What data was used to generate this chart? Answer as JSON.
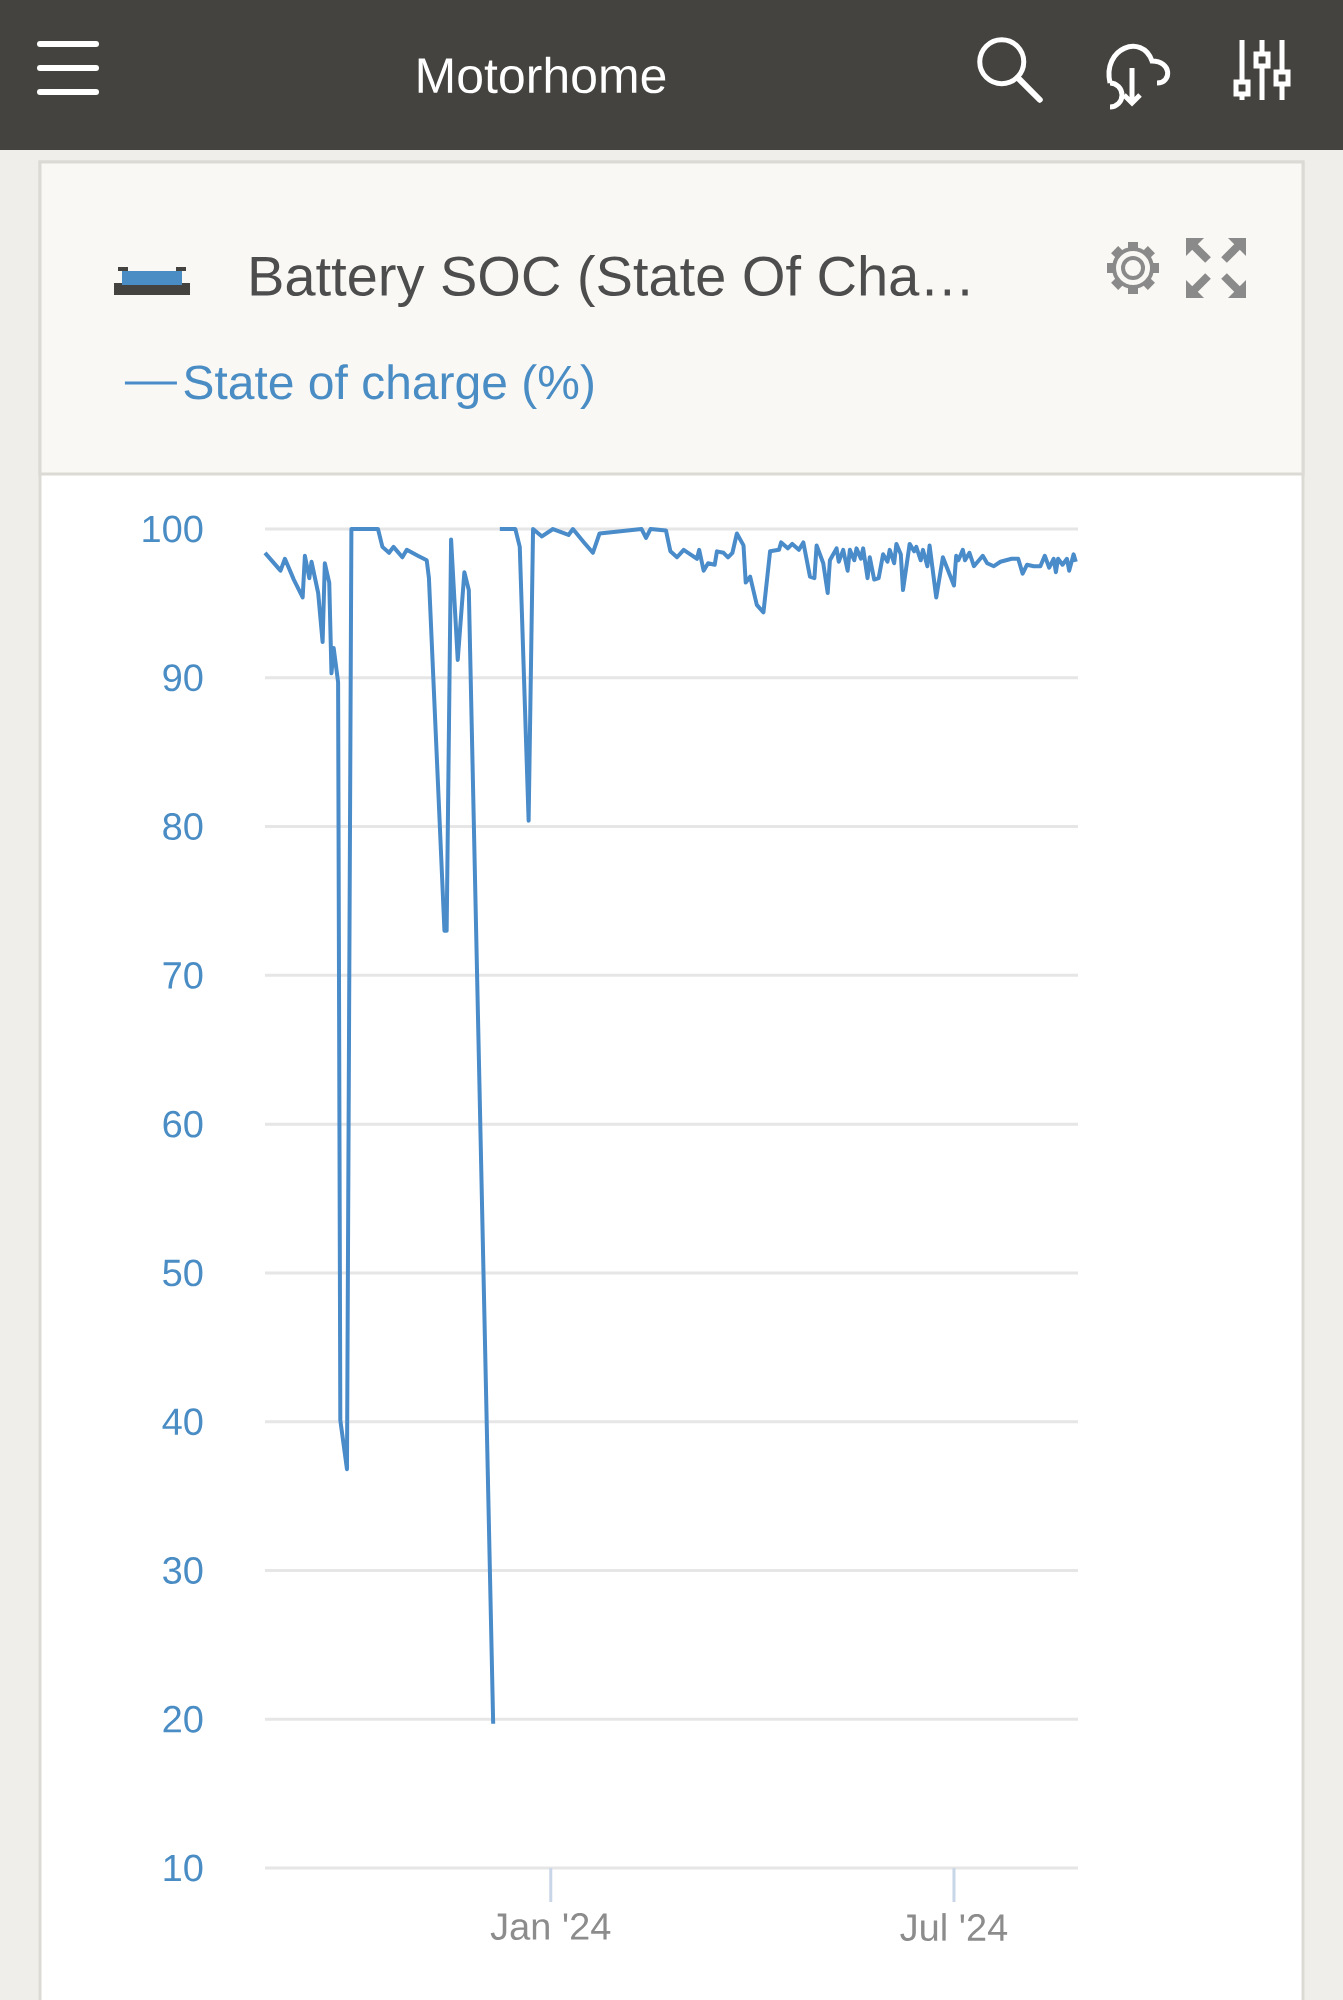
{
  "chart_data": {
    "type": "line",
    "title": "Battery SOC (State Of Cha…",
    "annotations": [
      "Motorhome"
    ],
    "x": [
      "2023-08-25",
      "2023-09-01",
      "2023-09-03",
      "2023-09-07",
      "2023-09-11",
      "2023-09-12",
      "2023-09-14",
      "2023-09-15",
      "2023-09-18",
      "2023-09-20",
      "2023-09-21",
      "2023-09-23",
      "2023-09-24",
      "2023-09-25",
      "2023-09-27",
      "2023-09-28",
      "2023-10-01",
      "2023-10-03",
      "2023-10-15",
      "2023-10-17",
      "2023-10-20",
      "2023-10-22",
      "2023-10-26",
      "2023-10-28",
      "2023-11-02",
      "2023-11-06",
      "2023-11-07",
      "2023-11-14",
      "2023-11-15",
      "2023-11-17",
      "2023-11-20",
      "2023-11-23",
      "2023-11-25",
      "2023-12-06",
      "2023-12-08",
      "2023-12-09",
      "2023-12-16",
      "2023-12-18",
      "2023-12-22",
      "2023-12-24",
      "2023-12-28",
      "2024-01-02",
      "2024-01-09",
      "2024-01-11",
      "2024-01-16",
      "2024-01-20",
      "2024-01-23",
      "2024-02-11",
      "2024-02-13",
      "2024-02-15",
      "2024-02-22",
      "2024-02-24",
      "2024-02-27",
      "2024-03-01",
      "2024-03-04",
      "2024-03-07",
      "2024-03-08",
      "2024-03-10",
      "2024-03-12",
      "2024-03-15",
      "2024-03-16",
      "2024-03-19",
      "2024-03-21",
      "2024-03-23",
      "2024-03-25",
      "2024-03-28",
      "2024-03-29",
      "2024-03-31",
      "2024-04-03",
      "2024-04-06",
      "2024-04-09",
      "2024-04-13",
      "2024-04-14",
      "2024-04-17",
      "2024-04-19",
      "2024-04-22",
      "2024-04-24",
      "2024-04-27",
      "2024-04-29",
      "2024-04-30",
      "2024-05-03",
      "2024-05-05",
      "2024-05-06",
      "2024-05-09",
      "2024-05-10",
      "2024-05-12",
      "2024-05-14",
      "2024-05-15",
      "2024-05-17",
      "2024-05-18",
      "2024-05-20",
      "2024-05-21",
      "2024-05-23",
      "2024-05-24",
      "2024-05-26",
      "2024-05-28",
      "2024-05-30",
      "2024-06-01",
      "2024-06-02",
      "2024-06-04",
      "2024-06-05",
      "2024-06-07",
      "2024-06-08",
      "2024-06-11",
      "2024-06-13",
      "2024-06-14",
      "2024-06-16",
      "2024-06-17",
      "2024-06-19",
      "2024-06-20",
      "2024-06-23",
      "2024-06-26",
      "2024-07-01",
      "2024-07-02",
      "2024-07-03",
      "2024-07-05",
      "2024-07-06",
      "2024-07-08",
      "2024-07-10",
      "2024-07-14",
      "2024-07-16",
      "2024-07-19",
      "2024-07-22",
      "2024-07-27",
      "2024-07-30",
      "2024-08-01",
      "2024-08-03",
      "2024-08-06",
      "2024-08-09",
      "2024-08-11",
      "2024-08-13",
      "2024-08-15",
      "2024-08-16",
      "2024-08-17",
      "2024-08-19",
      "2024-08-21",
      "2024-08-22",
      "2024-08-24",
      "2024-08-25"
    ],
    "series": [
      {
        "name": "State of charge (%)",
        "color": "#4a8bc9",
        "values": [
          98.4,
          97.2,
          98.0,
          96.6,
          95.4,
          98.2,
          96.7,
          97.8,
          95.7,
          92.4,
          97.7,
          96.4,
          90.3,
          92.0,
          89.7,
          40.1,
          36.8,
          100,
          100,
          98.8,
          98.4,
          98.8,
          98.1,
          98.6,
          98.2,
          97.9,
          96.7,
          73.0,
          73.0,
          99.3,
          91.2,
          97.1,
          95.9,
          19.7,
          null,
          100,
          100,
          98.8,
          80.4,
          100,
          99.5,
          100,
          99.6,
          100,
          99.1,
          98.4,
          99.7,
          100,
          99.4,
          100,
          99.9,
          98.5,
          98.1,
          98.6,
          98.3,
          98.0,
          98.6,
          97.2,
          97.7,
          97.6,
          98.5,
          98.4,
          98.1,
          98.4,
          99.7,
          98.9,
          96.4,
          96.8,
          94.9,
          94.4,
          98.5,
          98.6,
          99.1,
          98.7,
          99.0,
          98.6,
          99.1,
          96.8,
          96.7,
          98.9,
          97.7,
          95.7,
          97.9,
          98.7,
          97.8,
          98.6,
          97.2,
          98.6,
          97.9,
          98.7,
          98.0,
          98.7,
          96.7,
          98.1,
          96.6,
          96.7,
          98.3,
          97.8,
          98.6,
          97.7,
          99.0,
          98.3,
          95.9,
          99.0,
          98.5,
          98.8,
          97.9,
          98.6,
          97.5,
          98.9,
          95.4,
          98.1,
          96.2,
          98.2,
          97.9,
          98.6,
          97.9,
          98.4,
          97.5,
          98.2,
          97.7,
          97.5,
          97.8,
          98.0,
          98.0,
          97.0,
          97.6,
          97.5,
          97.5,
          98.2,
          97.4,
          98.0,
          97.1,
          98.0,
          97.6,
          98.0,
          97.2,
          98.3,
          97.8
        ]
      }
    ],
    "xlim": [
      "2023-08-25",
      "2024-08-26"
    ],
    "xticks": [
      {
        "value": "2024-01-01",
        "label": "Jan '24"
      },
      {
        "value": "2024-07-01",
        "label": "Jul '24"
      }
    ],
    "ylim": [
      10,
      100
    ],
    "yticks": [
      10,
      20,
      30,
      40,
      50,
      60,
      70,
      80,
      90,
      100
    ],
    "grid": "y",
    "legend": "top left"
  }
}
